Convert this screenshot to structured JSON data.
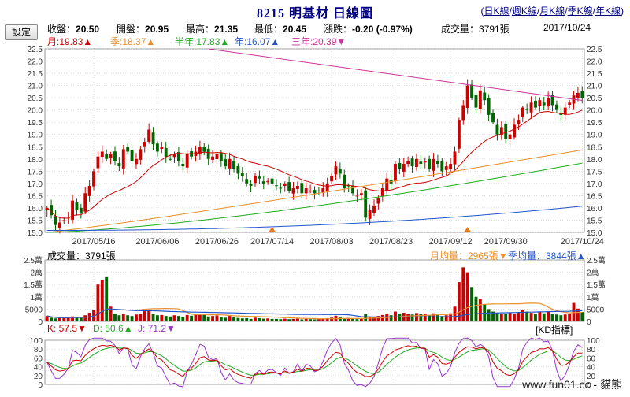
{
  "header": {
    "title": "8215 明基材  日線圖",
    "links": [
      "日K線",
      "週K線",
      "月K線",
      "季K線",
      "年K線"
    ],
    "settings_label": "設定"
  },
  "quote": {
    "close_label": "收盤：",
    "close": "20.50",
    "open_label": "開盤：",
    "open": "20.95",
    "high_label": "最高：",
    "high": "21.35",
    "low_label": "最低：",
    "low": "20.45",
    "change_label": "漲跌：",
    "change": "-0.20 (-0.97%)",
    "volume_label": "成交量：",
    "volume": "3791張",
    "date": "2017/10/24"
  },
  "ma_legend": {
    "m": "月:19.83▲",
    "q": "季:18.37▲",
    "h": "半年:17.83▲",
    "y": "年:16.07▲",
    "y3": "三年:20.39▼"
  },
  "vol_legend": {
    "vol": "成交量：3791張",
    "mvol": "月均量：2965張▼",
    "qvol": "季均量：3844張▲"
  },
  "kd_legend": {
    "k": "K: 57.5▼",
    "d": "D: 50.6▲",
    "j": "J: 71.2▼",
    "name": "KD指標"
  },
  "watermark": "www.fun01.cc - 貓熊",
  "colors": {
    "up": "#cc0000",
    "down": "#006600",
    "ma_month": "#cc0000",
    "ma_quarter": "#e88e2c",
    "ma_half": "#22aa22",
    "ma_year": "#2255cc",
    "ma_3year": "#cc3399",
    "k": "#cc0000",
    "d": "#22aa22",
    "j": "#9933cc",
    "grid": "#c8c8c8",
    "vol_ma_m": "#e8902c",
    "vol_ma_q": "#2255cc"
  },
  "chart_data": [
    {
      "type": "candlestick",
      "name": "price",
      "ylim": [
        15.0,
        22.5
      ],
      "yticks": [
        "22.5",
        "22.0",
        "21.5",
        "21.0",
        "20.5",
        "20.0",
        "19.5",
        "19.0",
        "18.5",
        "18.0",
        "17.5",
        "17.0",
        "16.5",
        "16.0",
        "15.5",
        "15.0"
      ],
      "xticks": [
        "2017/05/16",
        "2017/06/06",
        "2017/06/26",
        "2017/07/14",
        "2017/08/03",
        "2017/08/23",
        "2017/09/12",
        "2017/09/30",
        "2017/10/24"
      ],
      "xtick_index": [
        11,
        26,
        40,
        53,
        67,
        81,
        95,
        108,
        126
      ],
      "closes": [
        16.0,
        15.7,
        15.3,
        15.4,
        15.5,
        15.6,
        16.3,
        15.9,
        15.8,
        16.6,
        16.9,
        17.5,
        18.1,
        18.3,
        18.0,
        18.2,
        17.9,
        17.7,
        18.4,
        18.3,
        17.9,
        18.0,
        18.4,
        18.7,
        19.2,
        18.6,
        18.3,
        18.5,
        18.1,
        18.0,
        18.2,
        17.9,
        17.7,
        18.2,
        18.1,
        18.3,
        18.5,
        18.3,
        18.0,
        18.1,
        18.2,
        17.9,
        17.7,
        18.0,
        17.6,
        17.4,
        17.3,
        17.0,
        16.9,
        17.3,
        17.2,
        17.0,
        17.1,
        17.0,
        16.9,
        16.8,
        17.0,
        16.7,
        16.8,
        16.9,
        16.6,
        16.8,
        16.7,
        16.6,
        16.7,
        16.8,
        17.0,
        17.3,
        17.7,
        17.4,
        16.8,
        16.9,
        16.6,
        16.5,
        16.6,
        15.6,
        15.9,
        16.1,
        16.4,
        16.8,
        17.2,
        17.0,
        17.8,
        17.6,
        17.8,
        17.9,
        17.7,
        18.0,
        17.8,
        17.9,
        17.6,
        18.0,
        17.8,
        17.5,
        17.7,
        17.8,
        18.3,
        19.6,
        20.2,
        21.0,
        20.5,
        20.1,
        20.8,
        20.4,
        19.8,
        19.5,
        19.0,
        19.3,
        18.8,
        19.0,
        19.4,
        19.6,
        20.1,
        20.0,
        20.3,
        20.1,
        20.4,
        20.2,
        20.5,
        20.2,
        20.0,
        19.8,
        20.1,
        20.3,
        20.6,
        20.7,
        20.5
      ],
      "ma": {
        "month_end": 19.83,
        "quarter_end": 18.37,
        "half_end": 17.83,
        "year_end": 16.07,
        "three_year_end": 20.39
      }
    },
    {
      "type": "bar",
      "name": "volume",
      "ylim": [
        0,
        25000
      ],
      "yticks_left": [
        "2.5萬",
        "2萬",
        "1.5萬",
        "1萬",
        "5000",
        "0"
      ],
      "yticks_right": [
        "2.5萬",
        "2萬",
        "1.5萬",
        "1萬",
        "5000",
        "0"
      ],
      "values": [
        2200,
        1500,
        1200,
        1400,
        1300,
        1700,
        2000,
        1600,
        1400,
        2500,
        3500,
        4500,
        15000,
        17000,
        18000,
        6000,
        3000,
        2500,
        3000,
        2500,
        2200,
        2800,
        3200,
        5000,
        4200,
        3000,
        2500,
        2600,
        2200,
        2000,
        2500,
        2200,
        1800,
        2600,
        2300,
        2800,
        3000,
        2600,
        2000,
        2200,
        2400,
        1800,
        1500,
        2200,
        1700,
        1400,
        1200,
        1300,
        1000,
        1500,
        1300,
        1100,
        1200,
        1000,
        1000,
        900,
        1100,
        900,
        1000,
        1100,
        800,
        1000,
        900,
        800,
        900,
        1000,
        1300,
        1500,
        2300,
        1800,
        1200,
        1400,
        1000,
        900,
        1100,
        3000,
        2000,
        1800,
        2200,
        2600,
        3200,
        2500,
        4000,
        3200,
        3500,
        3000,
        2800,
        3400,
        2900,
        3000,
        2400,
        3300,
        2800,
        2200,
        2500,
        3300,
        6000,
        16000,
        22000,
        20000,
        14000,
        10000,
        9000,
        7000,
        5000,
        4000,
        3500,
        3200,
        3000,
        3600,
        3200,
        3500,
        4500,
        4000,
        3500,
        3200,
        3800,
        3300,
        4000,
        3200,
        2800,
        2500,
        2800,
        3000,
        7500,
        5200,
        3791
      ],
      "month_avg": 2965,
      "quarter_avg": 3844
    },
    {
      "type": "line",
      "name": "kd",
      "ylim": [
        0,
        100
      ],
      "yticks": [
        "100",
        "80",
        "60",
        "40",
        "20",
        "0"
      ],
      "k_end": 57.5,
      "d_end": 50.6,
      "j_end": 71.2
    }
  ]
}
